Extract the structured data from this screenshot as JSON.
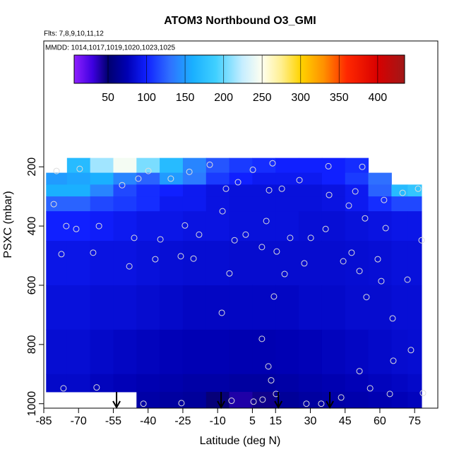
{
  "chart_data": {
    "type": "curtain",
    "title": "ATOM3 Northbound O3_GMI",
    "subtitle": "Flts: 7,8,9,10,11,12",
    "annotation": "MMDD: 1014,1017,1019,1020,1023,1025",
    "x_label": "Latitude (deg N)",
    "y_label": "PSXC (mbar)",
    "xlim": [
      -85,
      85
    ],
    "xticks": [
      -85,
      -70,
      -55,
      -40,
      -25,
      -10,
      5,
      15,
      30,
      45,
      60,
      75
    ],
    "ylim": [
      1015,
      -225
    ],
    "yticks": [
      200,
      400,
      600,
      800,
      1000
    ],
    "colorbar": {
      "lim": [
        6,
        435
      ],
      "ticks": [
        50,
        100,
        150,
        200,
        250,
        300,
        350,
        400
      ],
      "stops": [
        [
          6,
          "#8f20ff"
        ],
        [
          30,
          "#3d00e0"
        ],
        [
          50,
          "#00006e"
        ],
        [
          75,
          "#0000b4"
        ],
        [
          100,
          "#1020ff"
        ],
        [
          130,
          "#2f70ff"
        ],
        [
          160,
          "#1ab0ff"
        ],
        [
          190,
          "#40d0ff"
        ],
        [
          225,
          "#c8eeff"
        ],
        [
          250,
          "#fffff0"
        ],
        [
          275,
          "#ffef90"
        ],
        [
          300,
          "#ffd400"
        ],
        [
          330,
          "#ff9000"
        ],
        [
          360,
          "#ff2800"
        ],
        [
          400,
          "#d80000"
        ],
        [
          435,
          "#a01818"
        ]
      ]
    },
    "curtain": {
      "lat_edges": [
        -84,
        -75,
        -65,
        -55,
        -45,
        -35,
        -25,
        -15,
        -5,
        5,
        15,
        25,
        35,
        45,
        55,
        65,
        72,
        78
      ],
      "pressure_edges": [
        170,
        220,
        260,
        300,
        350,
        450,
        600,
        750,
        900,
        960,
        1015
      ],
      "values": [
        [
          null,
          170,
          215,
          245,
          205,
          170,
          140,
          120,
          110,
          105,
          100,
          100,
          100,
          105,
          null,
          null,
          null
        ],
        [
          150,
          155,
          160,
          140,
          125,
          150,
          135,
          110,
          100,
          95,
          95,
          95,
          100,
          110,
          130,
          null,
          null
        ],
        [
          160,
          160,
          140,
          115,
          105,
          100,
          95,
          90,
          88,
          88,
          88,
          88,
          90,
          95,
          125,
          170,
          180
        ],
        [
          125,
          125,
          115,
          110,
          105,
          95,
          95,
          90,
          88,
          88,
          88,
          88,
          90,
          95,
          105,
          115,
          115
        ],
        [
          100,
          100,
          98,
          95,
          92,
          92,
          90,
          90,
          88,
          88,
          88,
          86,
          86,
          88,
          90,
          92,
          92
        ],
        [
          92,
          92,
          90,
          90,
          88,
          86,
          85,
          85,
          84,
          84,
          84,
          84,
          84,
          85,
          86,
          88,
          88
        ],
        [
          88,
          88,
          86,
          86,
          84,
          82,
          80,
          80,
          80,
          80,
          80,
          82,
          82,
          84,
          84,
          86,
          86
        ],
        [
          85,
          85,
          82,
          80,
          78,
          76,
          75,
          75,
          74,
          74,
          75,
          76,
          78,
          80,
          82,
          84,
          85
        ],
        [
          82,
          82,
          78,
          76,
          74,
          72,
          70,
          70,
          68,
          68,
          70,
          72,
          74,
          76,
          78,
          80,
          82
        ],
        [
          null,
          null,
          null,
          null,
          70,
          68,
          66,
          48,
          40,
          45,
          65,
          68,
          70,
          72,
          74,
          76,
          78
        ]
      ]
    },
    "samples": {
      "color": "#dddddd",
      "x": [
        -79.5,
        -69.5,
        -39.9,
        -30.2,
        -22.2,
        -13.4,
        5.2,
        13.7,
        37.8,
        52.4,
        -51.2,
        -44.2,
        -6.4,
        -1.2,
        12.2,
        17.7,
        25.3,
        38.1,
        49.4,
        61.8,
        69.8,
        76.5,
        -80.7,
        -75.3,
        -71,
        -61.2,
        -24.1,
        -18,
        -7.9,
        2.1,
        11,
        36.6,
        46.6,
        53.6,
        62.5,
        78,
        -77.4,
        -63.7,
        -46,
        -34.7,
        -2.7,
        9.1,
        21.3,
        30.2,
        47.8,
        59.1,
        -48.1,
        -36.9,
        -25.9,
        -20.4,
        15.5,
        27.4,
        44.2,
        51.2,
        60.6,
        71.9,
        54.2,
        65.5,
        -4.9,
        18.9,
        14.3,
        -8.2,
        9.1,
        51.2,
        65.8,
        73.4,
        -76.5,
        -62.2,
        11.9,
        13.1,
        15.2,
        9.4,
        5.5,
        -4,
        28.3,
        43.3,
        55.8,
        64.3,
        78.6,
        -25.6,
        -42,
        34.7
      ],
      "y": [
        214,
        207,
        214,
        240,
        217,
        193,
        210,
        188,
        198,
        200,
        262,
        240,
        274,
        252,
        279,
        274,
        245,
        295,
        283,
        312,
        288,
        274,
        326,
        400,
        410,
        400,
        398,
        429,
        350,
        429,
        383,
        410,
        331,
        374,
        407,
        448,
        495,
        490,
        440,
        445,
        448,
        471,
        440,
        440,
        490,
        512,
        536,
        512,
        502,
        510,
        486,
        526,
        519,
        552,
        586,
        581,
        640,
        712,
        560,
        562,
        638,
        693,
        781,
        890,
        855,
        819,
        948,
        945,
        874,
        921,
        967,
        986,
        993,
        990,
        1000,
        979,
        948,
        967,
        964,
        998,
        1000,
        1000
      ]
    },
    "flight_markers": [
      -53.6,
      -8.5,
      16.2,
      38.4
    ]
  }
}
